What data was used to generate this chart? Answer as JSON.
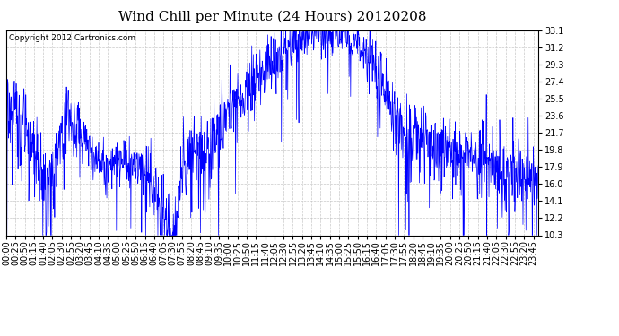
{
  "title": "Wind Chill per Minute (24 Hours) 20120208",
  "copyright_text": "Copyright 2012 Cartronics.com",
  "y_ticks": [
    10.3,
    12.2,
    14.1,
    16.0,
    17.9,
    19.8,
    21.7,
    23.6,
    25.5,
    27.4,
    29.3,
    31.2,
    33.1
  ],
  "ylim": [
    10.3,
    33.1
  ],
  "line_color": "#0000ff",
  "bg_color": "#ffffff",
  "plot_bg_color": "#ffffff",
  "grid_color": "#bbbbbb",
  "border_color": "#000000",
  "title_fontsize": 11,
  "copyright_fontsize": 6.5,
  "tick_fontsize": 7
}
